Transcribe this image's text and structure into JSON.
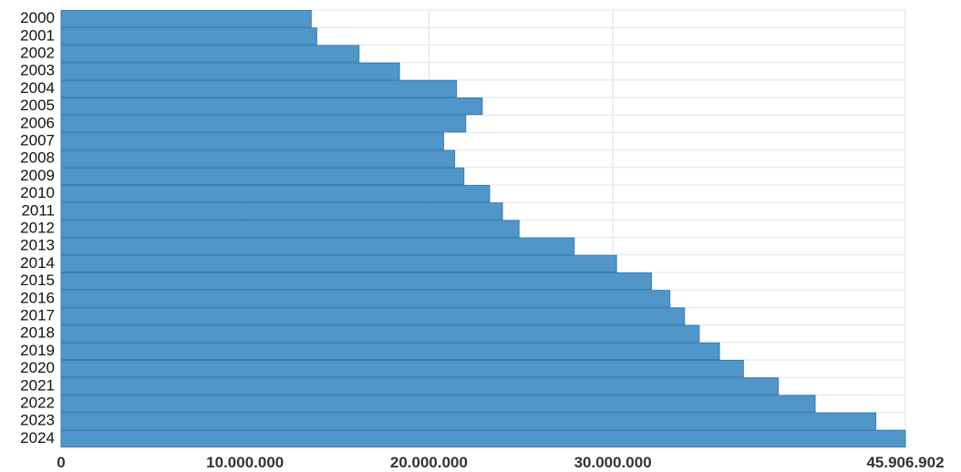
{
  "chart_data": {
    "type": "bar",
    "orientation": "horizontal",
    "title": "",
    "xlabel": "",
    "ylabel": "",
    "categories": [
      "2000",
      "2001",
      "2002",
      "2003",
      "2004",
      "2005",
      "2006",
      "2007",
      "2008",
      "2009",
      "2010",
      "2011",
      "2012",
      "2013",
      "2014",
      "2015",
      "2016",
      "2017",
      "2018",
      "2019",
      "2020",
      "2021",
      "2022",
      "2023",
      "2024"
    ],
    "values": [
      13600000,
      13900000,
      16200000,
      18400000,
      21500000,
      22900000,
      22000000,
      20800000,
      21400000,
      21900000,
      23300000,
      24000000,
      24900000,
      27900000,
      30200000,
      32100000,
      33100000,
      33900000,
      34700000,
      35800000,
      37100000,
      39000000,
      41000000,
      44300000,
      45906902
    ],
    "xlim": [
      0,
      45906902
    ],
    "x_ticks": [
      0,
      10000000,
      20000000,
      30000000,
      45906902
    ],
    "x_tick_labels": [
      "0",
      "10.000.000",
      "20.000.000",
      "30.000.000",
      "45.906.902"
    ],
    "grid": true,
    "colors": {
      "bar": "#5196c9",
      "bar_edge": "#3a7db2",
      "grid": "#dddddd"
    }
  }
}
